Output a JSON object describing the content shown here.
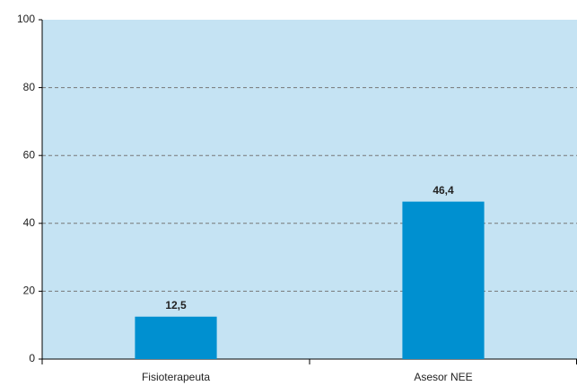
{
  "chart_data": {
    "type": "bar",
    "categories": [
      "Fisioterapeuta",
      "Asesor NEE"
    ],
    "values": [
      12.5,
      46.4
    ],
    "value_labels": [
      "12,5",
      "46,4"
    ],
    "color": "#0090d0",
    "ylim": [
      0,
      100
    ],
    "yticks": [
      0,
      20,
      40,
      60,
      80,
      100
    ],
    "grid": true
  }
}
